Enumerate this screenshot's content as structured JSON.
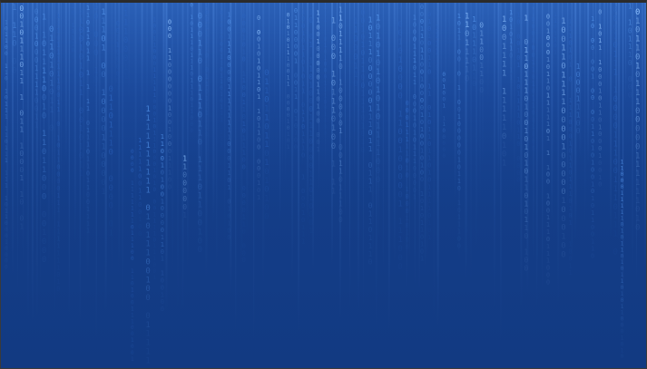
{
  "image": {
    "kind": "binary-code-rain-wallpaper",
    "glyphs": [
      "0",
      "1"
    ],
    "colors": {
      "background_top": "#16418f",
      "background_bottom": "#123a82",
      "glyph_bright": "#8fc2ff",
      "glyph_mid": "#4f8fe6",
      "glyph_dim": "#2b63bf"
    }
  }
}
